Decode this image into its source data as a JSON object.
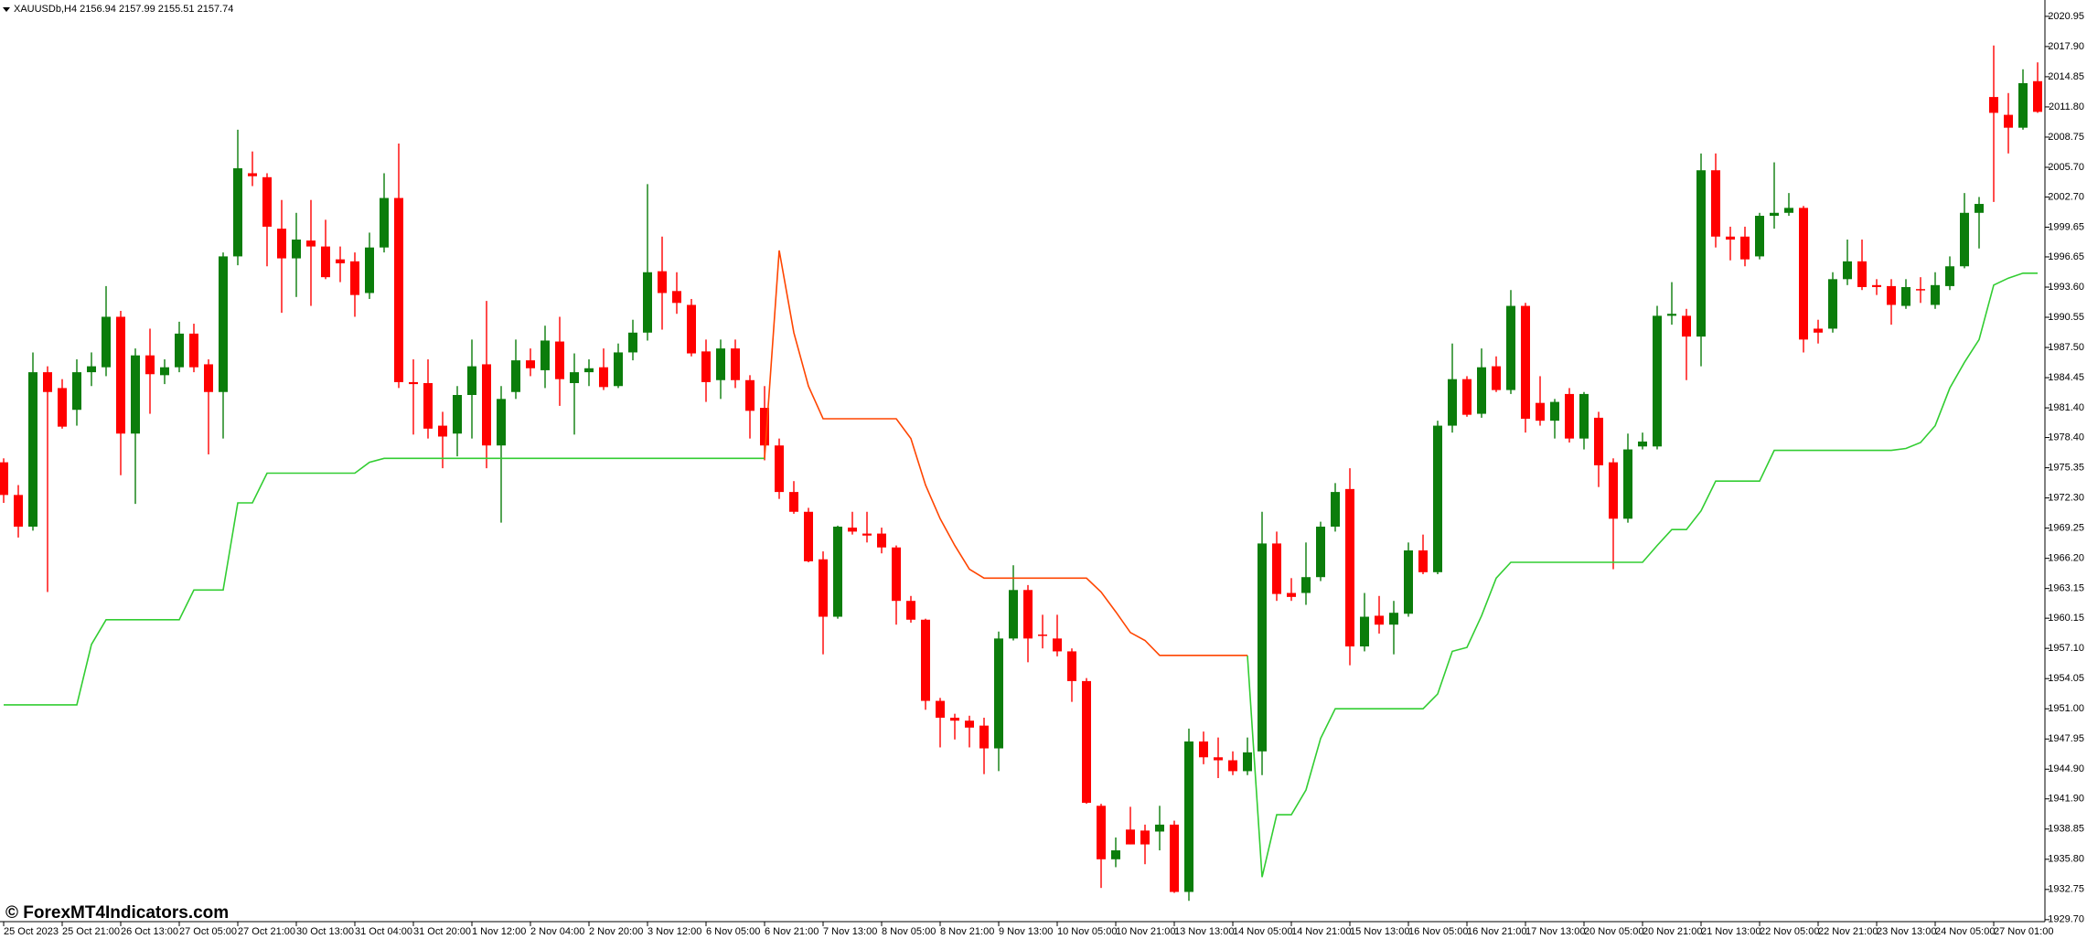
{
  "chart_data": {
    "type": "candlestick",
    "title": "XAUUSDb,H4  2156.94 2157.99 2155.51 2157.74",
    "up_color": "#0b7d0b",
    "down_color": "#ff0000",
    "ylim": [
      1929.5,
      2022.6
    ],
    "yticks": [
      2020.95,
      {
        "value": 2017.9,
        "label": "2017.90"
      },
      2014.85,
      {
        "value": 2011.8,
        "label": "2011.80"
      },
      2008.75,
      {
        "value": 2005.7,
        "label": "2005.70"
      },
      {
        "value": 2002.7,
        "label": "2002.70"
      },
      1999.65,
      1996.65,
      {
        "value": 1993.6,
        "label": "1993.60"
      },
      1990.55,
      {
        "value": 1987.5,
        "label": "1987.50"
      },
      1984.45,
      {
        "value": 1981.4,
        "label": "1981.40"
      },
      {
        "value": 1978.4,
        "label": "1978.40"
      },
      1975.35,
      {
        "value": 1972.3,
        "label": "1972.30"
      },
      1969.25,
      {
        "value": 1966.2,
        "label": "1966.20"
      },
      1963.15,
      1960.15,
      {
        "value": 1957.1,
        "label": "1957.10"
      },
      1954.05,
      {
        "value": 1951,
        "label": "1951.00"
      },
      1947.95,
      {
        "value": 1944.9,
        "label": "1944.90"
      },
      {
        "value": 1941.9,
        "label": "1941.90"
      },
      1938.85,
      {
        "value": 1935.8,
        "label": "1935.80"
      },
      1932.75,
      {
        "value": 1929.7,
        "label": "1929.70"
      }
    ],
    "categories": [
      "25 Oct 2023",
      null,
      null,
      null,
      "25 Oct 21:00",
      null,
      null,
      null,
      "26 Oct 13:00",
      null,
      null,
      null,
      "27 Oct 05:00",
      null,
      null,
      null,
      "27 Oct 21:00",
      null,
      null,
      null,
      "30 Oct 13:00",
      null,
      null,
      null,
      "31 Oct 04:00",
      null,
      null,
      null,
      "31 Oct 20:00",
      null,
      null,
      null,
      "1 Nov 12:00",
      null,
      null,
      null,
      "2 Nov 04:00",
      null,
      null,
      null,
      "2 Nov 20:00",
      null,
      null,
      null,
      "3 Nov 12:00",
      null,
      null,
      null,
      "6 Nov 05:00",
      null,
      null,
      null,
      "6 Nov 21:00",
      null,
      null,
      null,
      "7 Nov 13:00",
      null,
      null,
      null,
      "8 Nov 05:00",
      null,
      null,
      null,
      "8 Nov 21:00",
      null,
      null,
      null,
      "9 Nov 13:00",
      null,
      null,
      null,
      "10 Nov 05:00",
      null,
      null,
      null,
      "10 Nov 21:00",
      null,
      null,
      null,
      "13 Nov 13:00",
      null,
      null,
      null,
      "14 Nov 05:00",
      null,
      null,
      null,
      "14 Nov 21:00",
      null,
      null,
      null,
      "15 Nov 13:00",
      null,
      null,
      null,
      "16 Nov 05:00",
      null,
      null,
      null,
      "16 Nov 21:00",
      null,
      null,
      null,
      "17 Nov 13:00",
      null,
      null,
      null,
      "20 Nov 05:00",
      null,
      null,
      null,
      "20 Nov 21:00",
      null,
      null,
      null,
      "21 Nov 13:00",
      null,
      null,
      null,
      "22 Nov 05:00",
      null,
      null,
      null,
      "22 Nov 21:00",
      null,
      null,
      null,
      "23 Nov 13:00",
      null,
      null,
      null,
      "24 Nov 05:00",
      null,
      null,
      null,
      "27 Nov 01:00",
      null,
      null,
      null
    ],
    "open": [
      1975.9,
      1972.6,
      1969.4,
      1985.0,
      1983.4,
      1981.2,
      1985.0,
      1985.5,
      1990.6,
      1978.8,
      1986.7,
      1984.7,
      1985.5,
      1988.9,
      1985.8,
      1983.0,
      1996.7,
      2005.1,
      2004.7,
      1999.5,
      1996.5,
      1998.3,
      1997.7,
      1996.4,
      1996.2,
      1993.0,
      1997.6,
      2002.6,
      1984.0,
      1983.9,
      1979.6,
      1978.8,
      1982.7,
      1985.8,
      1977.6,
      1983.0,
      1986.2,
      1985.2,
      1988.1,
      1983.9,
      1985.0,
      1985.5,
      1983.6,
      1987.0,
      1989.0,
      1995.2,
      1993.2,
      1991.8,
      1987.1,
      1984.2,
      1987.4,
      1984.2,
      1981.4,
      1977.6,
      1972.9,
      1970.9,
      1966.1,
      1960.3,
      1969.3,
      1968.7,
      1968.7,
      1967.3,
      1961.9,
      1960.0,
      1951.8,
      1950.1,
      1949.8,
      1949.3,
      1947.0,
      1958.1,
      1963.0,
      1958.5,
      1958.1,
      1956.8,
      1953.8,
      1941.2,
      1935.8,
      1938.8,
      1938.7,
      1938.6,
      1939.3,
      1932.5,
      1947.7,
      1946.1,
      1945.8,
      1944.7,
      1946.7,
      1967.7,
      1962.7,
      1962.7,
      1964.3,
      1969.4,
      1973.2,
      1957.3,
      1960.4,
      1959.5,
      1960.6,
      1967.0,
      1964.8,
      1979.6,
      1984.3,
      1980.8,
      1985.6,
      1983.2,
      1991.7,
      1981.9,
      1980.1,
      1982.8,
      1978.3,
      1980.4,
      1975.9,
      1970.2,
      1977.5,
      1977.5,
      1990.7,
      1990.7,
      1988.6,
      2005.4,
      1998.7,
      1998.7,
      1996.7,
      2000.8,
      2001.1,
      2001.6,
      1989.4,
      1989.4,
      1994.4,
      1996.2,
      1993.8,
      1993.7,
      1991.7,
      1993.4,
      1991.8,
      1993.7,
      1995.7,
      2001.1,
      2012.8,
      2011.0,
      2009.7,
      2014.4
    ],
    "high": [
      1976.3,
      1973.6,
      1987.0,
      1985.6,
      1984.3,
      1986.3,
      1987.0,
      1993.7,
      1991.2,
      1987.4,
      1989.4,
      1986.3,
      1990.1,
      1989.9,
      1986.3,
      1997.1,
      2009.5,
      2007.3,
      2005.1,
      2002.4,
      2001.1,
      2002.4,
      2000.4,
      1997.7,
      1997.1,
      1999.1,
      2005.1,
      2008.1,
      1986.3,
      1986.3,
      1981.0,
      1983.6,
      1988.3,
      1992.2,
      1983.6,
      1988.3,
      1987.4,
      1989.7,
      1990.6,
      1986.9,
      1986.3,
      1987.4,
      1987.9,
      1990.3,
      2004.0,
      1998.7,
      1995.1,
      1992.4,
      1988.3,
      1988.3,
      1988.3,
      1984.7,
      1983.6,
      1978.3,
      1974.0,
      1971.3,
      1966.9,
      1969.5,
      1970.9,
      1970.9,
      1969.3,
      1967.5,
      1962.4,
      1960.1,
      1952.1,
      1950.5,
      1950.3,
      1950.1,
      1958.8,
      1965.5,
      1963.5,
      1960.5,
      1960.5,
      1957.1,
      1954.1,
      1941.4,
      1938.0,
      1941.1,
      1939.3,
      1941.2,
      1939.7,
      1949.0,
      1948.7,
      1948.1,
      1946.7,
      1948.1,
      1970.9,
      1968.9,
      1964.2,
      1967.8,
      1969.9,
      1973.8,
      1975.3,
      1962.7,
      1962.4,
      1961.9,
      1967.8,
      1968.6,
      1980.1,
      1987.9,
      1984.6,
      1987.4,
      1986.6,
      1993.3,
      1992.0,
      1984.6,
      1982.3,
      1983.4,
      1983.0,
      1981.0,
      1976.3,
      1978.8,
      1978.9,
      1991.7,
      1994.1,
      1991.4,
      2007.1,
      2007.1,
      1999.7,
      1999.7,
      2001.1,
      2006.2,
      2003.1,
      2001.8,
      1990.3,
      1995.1,
      1998.4,
      1998.4,
      1994.4,
      1994.4,
      1994.4,
      1994.6,
      1995.1,
      1996.7,
      2003.1,
      2002.7,
      2018.0,
      2013.2,
      2015.6,
      2016.3
    ],
    "low": [
      1971.8,
      1968.3,
      1969.0,
      1962.8,
      1979.3,
      1979.6,
      1983.6,
      1984.6,
      1974.6,
      1971.7,
      1980.8,
      1983.8,
      1985.0,
      1985.0,
      1976.7,
      1978.3,
      1995.8,
      2003.8,
      1995.7,
      1991.0,
      1992.6,
      1991.7,
      1994.4,
      1994.1,
      1990.6,
      1992.4,
      1997.1,
      1983.4,
      1978.7,
      1978.3,
      1975.3,
      1976.5,
      1978.3,
      1975.3,
      1969.8,
      1982.3,
      1984.6,
      1983.4,
      1981.6,
      1978.7,
      1983.6,
      1983.2,
      1983.4,
      1986.2,
      1988.2,
      1989.3,
      1990.9,
      1986.6,
      1982.0,
      1982.3,
      1983.4,
      1978.3,
      1976.1,
      1972.2,
      1970.7,
      1965.8,
      1956.5,
      1960.1,
      1968.6,
      1967.8,
      1966.7,
      1959.5,
      1959.7,
      1950.9,
      1947.1,
      1947.9,
      1947.1,
      1944.4,
      1944.7,
      1957.9,
      1955.7,
      1957.1,
      1956.3,
      1951.7,
      1941.4,
      1932.9,
      1935.0,
      1937.3,
      1935.3,
      1936.7,
      1932.4,
      1931.6,
      1945.4,
      1944.0,
      1944.3,
      1944.3,
      1944.3,
      1961.9,
      1961.9,
      1961.5,
      1963.9,
      1968.9,
      1955.4,
      1956.8,
      1958.6,
      1956.5,
      1960.3,
      1964.6,
      1964.6,
      1978.9,
      1980.5,
      1980.4,
      1983.0,
      1982.8,
      1978.9,
      1979.6,
      1978.3,
      1977.9,
      1977.2,
      1973.4,
      1965.1,
      1969.8,
      1977.2,
      1977.2,
      1989.8,
      1984.2,
      1985.6,
      1997.6,
      1996.3,
      1995.7,
      1996.4,
      1999.5,
      2000.8,
      1987.0,
      1987.9,
      1989.0,
      1993.8,
      1993.3,
      1992.8,
      1989.8,
      1991.4,
      1992.0,
      1991.4,
      1993.3,
      1995.5,
      1997.5,
      2002.2,
      2007.1,
      2009.5,
      2011.2
    ],
    "close": [
      1972.6,
      1969.4,
      1985.0,
      1983.0,
      1979.5,
      1985.0,
      1985.6,
      1990.6,
      1978.8,
      1986.7,
      1984.8,
      1985.5,
      1988.9,
      1985.5,
      1983.0,
      1996.7,
      2005.6,
      2004.8,
      1999.7,
      1996.5,
      1998.4,
      1997.7,
      1994.6,
      1996.0,
      1992.8,
      1997.6,
      2002.6,
      1984.0,
      1983.8,
      1979.3,
      1978.5,
      1982.7,
      1985.6,
      1977.6,
      1982.3,
      1986.2,
      1985.4,
      1988.2,
      1984.3,
      1985.0,
      1985.4,
      1983.5,
      1987.0,
      1989.0,
      1995.1,
      1993.0,
      1992.0,
      1986.9,
      1984.0,
      1987.4,
      1984.2,
      1981.1,
      1977.6,
      1972.9,
      1970.9,
      1965.9,
      1960.3,
      1969.4,
      1968.9,
      1968.5,
      1967.3,
      1961.9,
      1960.0,
      1951.8,
      1950.1,
      1949.8,
      1949.1,
      1947.0,
      1958.1,
      1963.0,
      1958.1,
      1958.4,
      1956.8,
      1953.8,
      1941.5,
      1935.8,
      1936.7,
      1937.3,
      1937.3,
      1939.3,
      1932.5,
      1947.7,
      1946.1,
      1945.8,
      1944.7,
      1946.6,
      1967.7,
      1962.6,
      1962.3,
      1964.3,
      1969.4,
      1972.9,
      1957.3,
      1960.3,
      1959.5,
      1960.7,
      1967.0,
      1964.8,
      1979.6,
      1984.3,
      1980.7,
      1985.5,
      1983.2,
      1991.7,
      1980.3,
      1980.1,
      1982.0,
      1978.3,
      1982.8,
      1975.6,
      1970.2,
      1977.2,
      1978.0,
      1990.7,
      1990.9,
      1988.6,
      2005.4,
      1998.7,
      1998.4,
      1996.4,
      2000.8,
      2001.1,
      2001.6,
      1988.3,
      1989.0,
      1994.4,
      1996.2,
      1993.6,
      1993.6,
      1991.8,
      1993.6,
      1993.3,
      1993.8,
      1995.7,
      2001.1,
      2002.0,
      2011.2,
      2009.7,
      2014.2,
      2011.3
    ],
    "lines": [
      {
        "color": "#32cd32",
        "values": [
          1951.4,
          1951.4,
          1951.4,
          1951.4,
          1951.4,
          1951.4,
          1957.5,
          1960.0,
          1960.0,
          1960.0,
          1960.0,
          1960.0,
          1960.0,
          1963.0,
          1963.0,
          1963.0,
          1971.8,
          1971.8,
          1974.8,
          1974.8,
          1974.8,
          1974.8,
          1974.8,
          1974.8,
          1974.8,
          1975.9,
          1976.3,
          1976.3,
          1976.3,
          1976.3,
          1976.3,
          1976.3,
          1976.3,
          1976.3,
          1976.3,
          1976.3,
          1976.3,
          1976.3,
          1976.3,
          1976.3,
          1976.3,
          1976.3,
          1976.3,
          1976.3,
          1976.3,
          1976.3,
          1976.3,
          1976.3,
          1976.3,
          1976.3,
          1976.3,
          1976.3,
          1976.3,
          null,
          null,
          null,
          null,
          null,
          null,
          null,
          null,
          null,
          null,
          null,
          null,
          null,
          null,
          null,
          null,
          null,
          null,
          null,
          null,
          null,
          null,
          null,
          null,
          null,
          null,
          null,
          null,
          null,
          null,
          null,
          null,
          1956.4,
          1934.0,
          1940.3,
          1940.3,
          1942.8,
          1948.0,
          1951.0,
          1951.0,
          1951.0,
          1951.0,
          1951.0,
          1951.0,
          1951.0,
          1952.5,
          1956.8,
          1957.2,
          1960.4,
          1964.2,
          1965.8,
          1965.8,
          1965.8,
          1965.8,
          1965.8,
          1965.8,
          1965.8,
          1965.8,
          1965.8,
          1965.8,
          1967.5,
          1969.1,
          1969.1,
          1971.0,
          1974.0,
          1974.0,
          1974.0,
          1974.0,
          1977.1,
          1977.1,
          1977.1,
          1977.1,
          1977.1,
          1977.1,
          1977.1,
          1977.1,
          1977.1,
          1977.3,
          1977.9,
          1979.6,
          1983.4,
          1986.0,
          1988.3,
          1993.8,
          1994.5,
          1995.0,
          1995.0
        ]
      },
      {
        "color": "#ff4500",
        "values": [
          null,
          null,
          null,
          null,
          null,
          null,
          null,
          null,
          null,
          null,
          null,
          null,
          null,
          null,
          null,
          null,
          null,
          null,
          null,
          null,
          null,
          null,
          null,
          null,
          null,
          null,
          null,
          null,
          null,
          null,
          null,
          null,
          null,
          null,
          null,
          null,
          null,
          null,
          null,
          null,
          null,
          null,
          null,
          null,
          null,
          null,
          null,
          null,
          null,
          null,
          null,
          null,
          1976.3,
          1997.3,
          1989.0,
          1983.6,
          1980.3,
          1980.3,
          1980.3,
          1980.3,
          1980.3,
          1980.3,
          1978.3,
          1973.6,
          1970.2,
          1967.5,
          1965.1,
          1964.2,
          1964.2,
          1964.2,
          1964.2,
          1964.2,
          1964.2,
          1964.2,
          1964.2,
          1962.8,
          1960.8,
          1958.7,
          1957.9,
          1956.4,
          1956.4,
          1956.4,
          1956.4,
          1956.4,
          1956.4,
          1956.4,
          null,
          null,
          null,
          null,
          null,
          null,
          null,
          null,
          null,
          null,
          null,
          null,
          null,
          null,
          null,
          null,
          null,
          null,
          null,
          null,
          null,
          null,
          null,
          null,
          null,
          null,
          null,
          null,
          null,
          null,
          null,
          null,
          null,
          null,
          null,
          null,
          null,
          null,
          null,
          null,
          null,
          null,
          null,
          null,
          null,
          null,
          null,
          null,
          null,
          null,
          null,
          null,
          null,
          null
        ]
      }
    ]
  },
  "watermark": "© ForexMT4Indicators.com"
}
